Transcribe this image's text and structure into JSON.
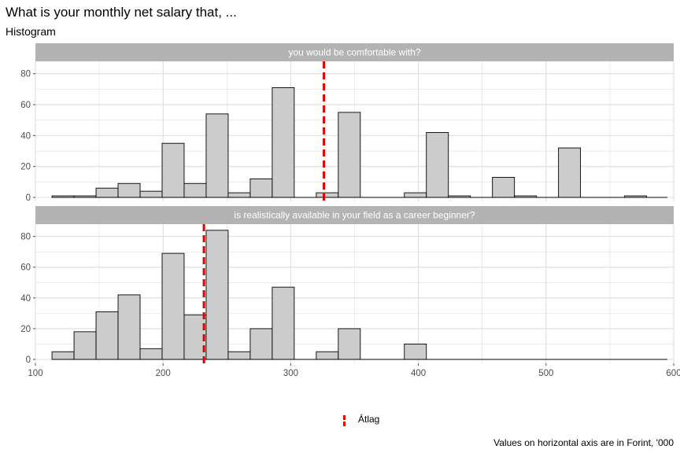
{
  "header": {
    "title": "What is your monthly net salary that, ...",
    "subtitle": "Histogram"
  },
  "caption": "Values on horizontal axis are in Forint, '000",
  "legend": {
    "label": "Átlag"
  },
  "colors": {
    "bar_fill": "#cccccc",
    "bar_stroke": "#000000",
    "mean_line": "#e30000",
    "strip": "#b3b3b3",
    "grid": "#dedede"
  },
  "chart_data": [
    {
      "type": "bar",
      "facet_label": "you would be comfortable with?",
      "bin_width": 17.25,
      "x_start": 113,
      "values": [
        1,
        1,
        6,
        9,
        4,
        35,
        9,
        54,
        3,
        12,
        71,
        0,
        3,
        55,
        0,
        0,
        3,
        42,
        1,
        0,
        13,
        1,
        0,
        32,
        0,
        0,
        1,
        0
      ],
      "mean": 326,
      "xlim": [
        100,
        600
      ],
      "ylim": [
        0,
        88
      ],
      "x_ticks": [
        100,
        200,
        300,
        400,
        500,
        600
      ],
      "y_ticks": [
        0,
        20,
        40,
        60,
        80
      ],
      "grid": true
    },
    {
      "type": "bar",
      "facet_label": "is realistically available in your field as a career beginner?",
      "bin_width": 17.25,
      "x_start": 113,
      "values": [
        5,
        18,
        31,
        42,
        7,
        69,
        29,
        84,
        5,
        20,
        47,
        0,
        5,
        20,
        0,
        0,
        10
      ],
      "mean": 232,
      "xlim": [
        100,
        600
      ],
      "ylim": [
        0,
        88
      ],
      "x_ticks": [
        100,
        200,
        300,
        400,
        500,
        600
      ],
      "y_ticks": [
        0,
        20,
        40,
        60,
        80
      ],
      "grid": true
    }
  ]
}
